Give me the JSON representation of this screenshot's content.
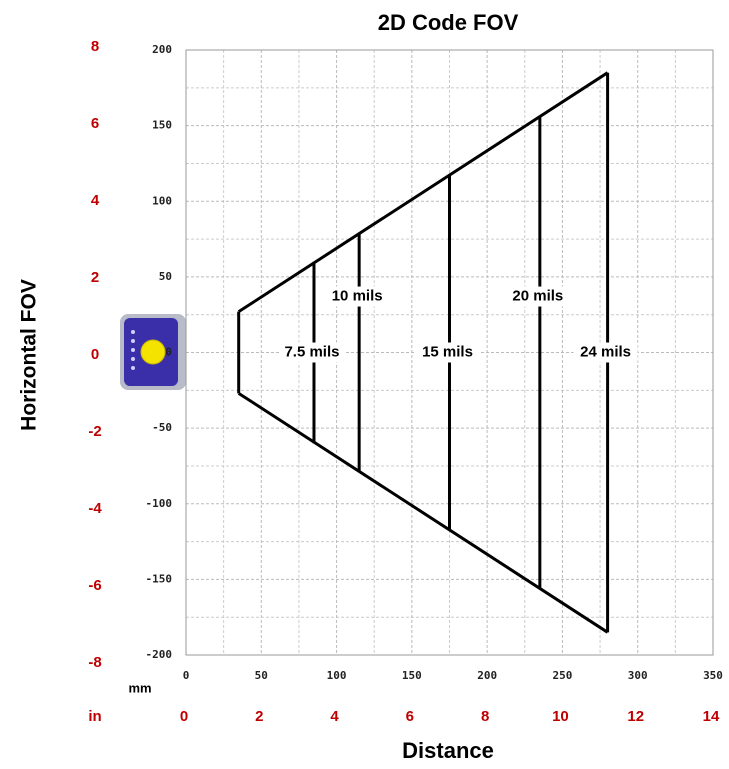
{
  "chart_data": {
    "type": "fov",
    "title": "2D Code FOV",
    "x_label": "Distance",
    "y_label": "Horizontal FOV",
    "x_unit": "mm",
    "x2_unit": "in",
    "xlim": [
      0,
      350
    ],
    "xticks": [
      0,
      50,
      100,
      150,
      200,
      250,
      300,
      350
    ],
    "ylim": [
      -200,
      200
    ],
    "yticks": [
      -200,
      -150,
      -100,
      -50,
      0,
      50,
      100,
      150,
      200
    ],
    "x2lim": [
      0,
      14
    ],
    "x2ticks": [
      0,
      2,
      4,
      6,
      8,
      10,
      12,
      14
    ],
    "y2lim": [
      -8,
      8
    ],
    "y2ticks": [
      -8,
      -6,
      -4,
      -2,
      0,
      2,
      4,
      6,
      8
    ],
    "grid": true,
    "minor_grid": true,
    "color": "#000000",
    "series": [
      {
        "x": [
          35,
          280
        ],
        "values": [
          27,
          185
        ]
      },
      {
        "x": [
          35,
          280
        ],
        "values": [
          -27,
          -185
        ]
      }
    ],
    "lines": [
      {
        "name": "7.5 mils",
        "x": 85,
        "values": [
          60,
          -60
        ]
      },
      {
        "name": "10 mils",
        "x": 115,
        "values": [
          79,
          -79
        ]
      },
      {
        "name": "15 mils",
        "x": 175,
        "values": [
          117,
          -117
        ]
      },
      {
        "name": "20 mils",
        "x": 235,
        "values": [
          156,
          -156
        ]
      },
      {
        "name": "24 mils",
        "x": 280,
        "values": [
          185,
          -185
        ]
      }
    ]
  }
}
